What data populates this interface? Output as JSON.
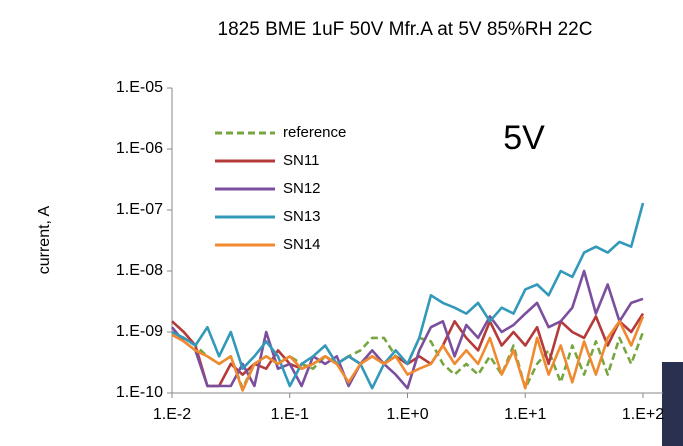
{
  "chart_data": {
    "type": "line",
    "title": "1825 BME 1uF 50V Mfr.A  at 5V 85%RH 22C",
    "y_label": "current, A",
    "annotation": "5V",
    "annotation_color": "#5a5a00",
    "xscale": "log",
    "yscale": "log",
    "grid": false,
    "legend": "upper left",
    "xlim": [
      0.01,
      100
    ],
    "ylim": [
      1e-10,
      1e-05
    ],
    "xticks": [
      {
        "value": 0.01,
        "label": "1.E-2"
      },
      {
        "value": 0.1,
        "label": "1.E-1"
      },
      {
        "value": 1,
        "label": "1.E+0"
      },
      {
        "value": 10,
        "label": "1.E+1"
      },
      {
        "value": 100,
        "label": "1.E+2"
      }
    ],
    "yticks": [
      {
        "value": 1e-10,
        "label": "1.E-10"
      },
      {
        "value": 1e-09,
        "label": "1.E-09"
      },
      {
        "value": 1e-08,
        "label": "1.E-08"
      },
      {
        "value": 1e-07,
        "label": "1.E-07"
      },
      {
        "value": 1e-06,
        "label": "1.E-06"
      },
      {
        "value": 1e-05,
        "label": "1.E-05"
      }
    ],
    "x": [
      0.01,
      0.0126,
      0.0158,
      0.02,
      0.0251,
      0.0316,
      0.0398,
      0.0501,
      0.0631,
      0.0794,
      0.1,
      0.126,
      0.158,
      0.2,
      0.251,
      0.316,
      0.398,
      0.501,
      0.631,
      0.794,
      1,
      1.26,
      1.58,
      2,
      2.51,
      3.16,
      3.98,
      5.01,
      6.31,
      7.94,
      10,
      12.6,
      15.8,
      20,
      25.1,
      31.6,
      39.8,
      50.1,
      63.1,
      79.4,
      100
    ],
    "series": [
      {
        "name": "reference",
        "color": "#77a640",
        "dashed": true,
        "values": [
          1e-09,
          8e-10,
          6e-10,
          4e-10,
          3e-10,
          4e-10,
          1.2e-10,
          3e-10,
          4e-10,
          3e-10,
          4e-10,
          3e-10,
          2.5e-10,
          4e-10,
          3e-10,
          4e-10,
          5e-10,
          8e-10,
          8e-10,
          4e-10,
          3e-10,
          8e-10,
          7e-10,
          3e-10,
          2e-10,
          3e-10,
          2e-10,
          4e-10,
          2e-10,
          6e-10,
          1.2e-10,
          3e-10,
          5e-10,
          1.5e-10,
          6e-10,
          2e-10,
          7e-10,
          2e-10,
          8e-10,
          3e-10,
          1e-09
        ]
      },
      {
        "name": "SN11",
        "color": "#b53a3a",
        "dashed": false,
        "values": [
          1.5e-09,
          1e-09,
          6e-10,
          1.3e-10,
          1.3e-10,
          3e-10,
          2e-10,
          3e-10,
          2.5e-10,
          5e-10,
          3e-10,
          2.5e-10,
          3e-10,
          4e-10,
          3e-10,
          4e-10,
          3e-10,
          4e-10,
          3e-10,
          4e-10,
          3e-10,
          4e-10,
          3e-10,
          6e-10,
          1.5e-09,
          8e-10,
          5e-10,
          1.5e-09,
          6e-10,
          1e-09,
          6e-10,
          1.2e-09,
          3e-10,
          1.5e-09,
          1e-09,
          8e-10,
          1.8e-09,
          6e-10,
          1.5e-09,
          1e-09,
          2e-09
        ]
      },
      {
        "name": "SN12",
        "color": "#7b4f9d",
        "dashed": false,
        "values": [
          1.2e-09,
          7e-10,
          5e-10,
          1.3e-10,
          1.3e-10,
          1.3e-10,
          3e-10,
          1.3e-10,
          1e-09,
          2.5e-10,
          3e-10,
          1.3e-10,
          4e-10,
          3e-10,
          4e-10,
          1.3e-10,
          3e-10,
          5e-10,
          3e-10,
          2e-10,
          1.2e-10,
          5e-10,
          1.2e-09,
          1.5e-09,
          4e-10,
          1.3e-09,
          8e-10,
          1.8e-09,
          1e-09,
          1.3e-09,
          2e-09,
          3e-09,
          1.2e-09,
          1.5e-09,
          2.5e-09,
          1e-08,
          2e-09,
          6e-09,
          1.5e-09,
          3e-09,
          3.5e-09
        ]
      },
      {
        "name": "SN13",
        "color": "#3399bb",
        "dashed": false,
        "values": [
          1e-09,
          8e-10,
          6e-10,
          1.2e-09,
          4e-10,
          1e-09,
          2.5e-10,
          4e-10,
          7e-10,
          4e-10,
          1.3e-10,
          3e-10,
          4e-10,
          6e-10,
          3e-10,
          4e-10,
          3e-10,
          1.2e-10,
          3e-10,
          5e-10,
          3e-10,
          8e-10,
          4e-09,
          3e-09,
          2.5e-09,
          2e-09,
          3e-09,
          1.5e-09,
          2.5e-09,
          2e-09,
          5e-09,
          6e-09,
          4e-09,
          1e-08,
          8e-09,
          2e-08,
          2.5e-08,
          2e-08,
          3e-08,
          2.5e-08,
          1.3e-07
        ]
      },
      {
        "name": "SN14",
        "color": "#f08a30",
        "dashed": false,
        "values": [
          9e-10,
          7e-10,
          5e-10,
          4e-10,
          3e-10,
          4e-10,
          1.1e-10,
          3e-10,
          4e-10,
          3e-10,
          4e-10,
          2.5e-10,
          3e-10,
          4e-10,
          3e-10,
          1.5e-10,
          3e-10,
          4e-10,
          3e-10,
          4e-10,
          2e-10,
          2.5e-10,
          3e-10,
          6e-10,
          3e-10,
          5e-10,
          3e-10,
          8e-10,
          2e-10,
          5e-10,
          1.2e-10,
          8e-10,
          2e-10,
          6e-10,
          1.5e-10,
          7e-10,
          2e-10,
          8e-10,
          1.5e-09,
          6e-10,
          1.8e-09
        ]
      }
    ]
  }
}
